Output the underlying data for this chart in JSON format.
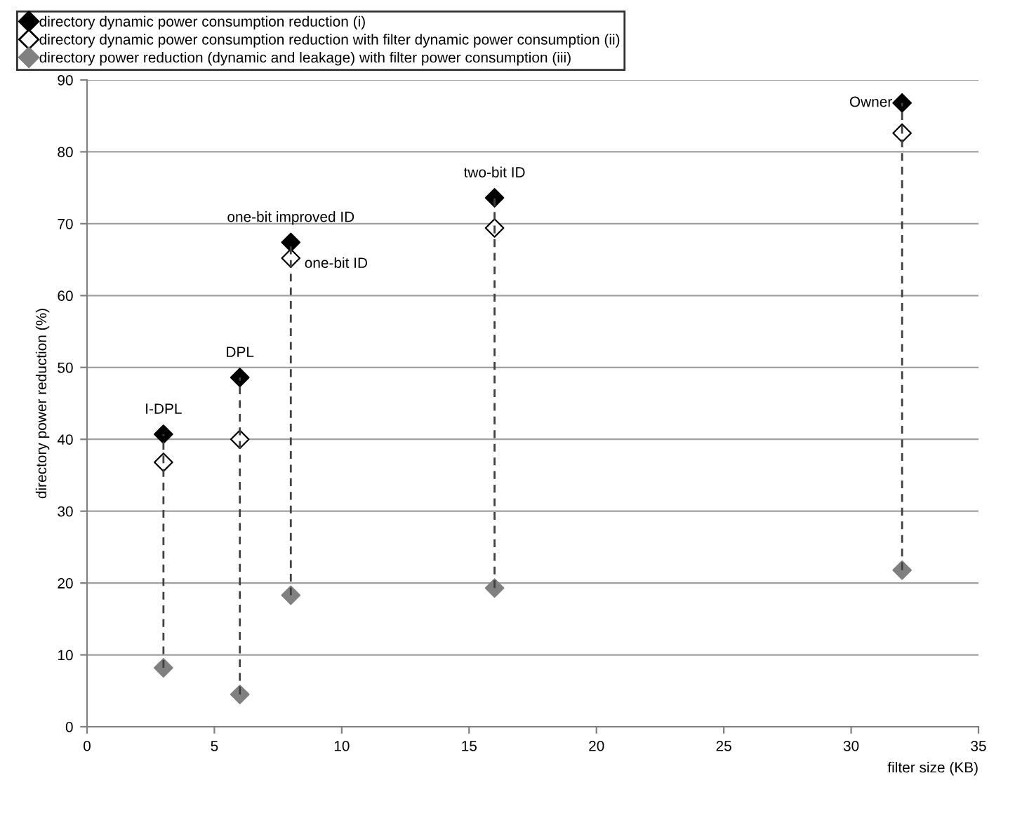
{
  "chart_data": {
    "type": "scatter",
    "xlabel": "filter size (KB)",
    "ylabel": "directory power reduction (%)",
    "xlim": [
      0,
      35
    ],
    "xticks": [
      0,
      5,
      10,
      15,
      20,
      25,
      30,
      35
    ],
    "ylim": [
      0,
      90
    ],
    "yticks": [
      0,
      10,
      20,
      30,
      40,
      50,
      60,
      70,
      80,
      90
    ],
    "grid": "y",
    "legend": "top",
    "marker": "diamond",
    "series": [
      {
        "name": "directory dynamic power consumption reduction (i)",
        "color": "#000000",
        "x": [
          3,
          6,
          8,
          16,
          32
        ],
        "values": [
          40.7,
          48.6,
          67.4,
          73.6,
          86.8
        ]
      },
      {
        "name": "directory dynamic power consumption reduction with filter dynamic power consumption (ii)",
        "color": "#ffffff",
        "x": [
          3,
          6,
          8,
          16,
          32
        ],
        "values": [
          36.8,
          40.0,
          65.2,
          69.4,
          82.6
        ],
        "line_style": "dashed",
        "errors": [
          [
            8.2,
            40.7
          ],
          [
            4.5,
            48.6
          ],
          [
            18.3,
            67.4
          ],
          [
            19.3,
            73.6
          ],
          [
            21.8,
            86.8
          ]
        ]
      },
      {
        "name": "directory power reduction (dynamic and leakage) with filter power consumption (iii)",
        "color": "#808080",
        "x": [
          3,
          6,
          8,
          16,
          32
        ],
        "values": [
          8.2,
          4.5,
          18.3,
          19.3,
          21.8
        ]
      }
    ],
    "annotations": [
      {
        "text": "I-DPL",
        "x": 3,
        "y": 40.7
      },
      {
        "text": "DPL",
        "x": 6,
        "y": 48.6
      },
      {
        "text": "one-bit improved ID",
        "x": 8,
        "y": 67.4
      },
      {
        "text": "one-bit ID",
        "x": 8,
        "y": 65.2
      },
      {
        "text": "two-bit ID",
        "x": 16,
        "y": 73.6
      },
      {
        "text": "Owner",
        "x": 32,
        "y": 86.8
      }
    ]
  }
}
